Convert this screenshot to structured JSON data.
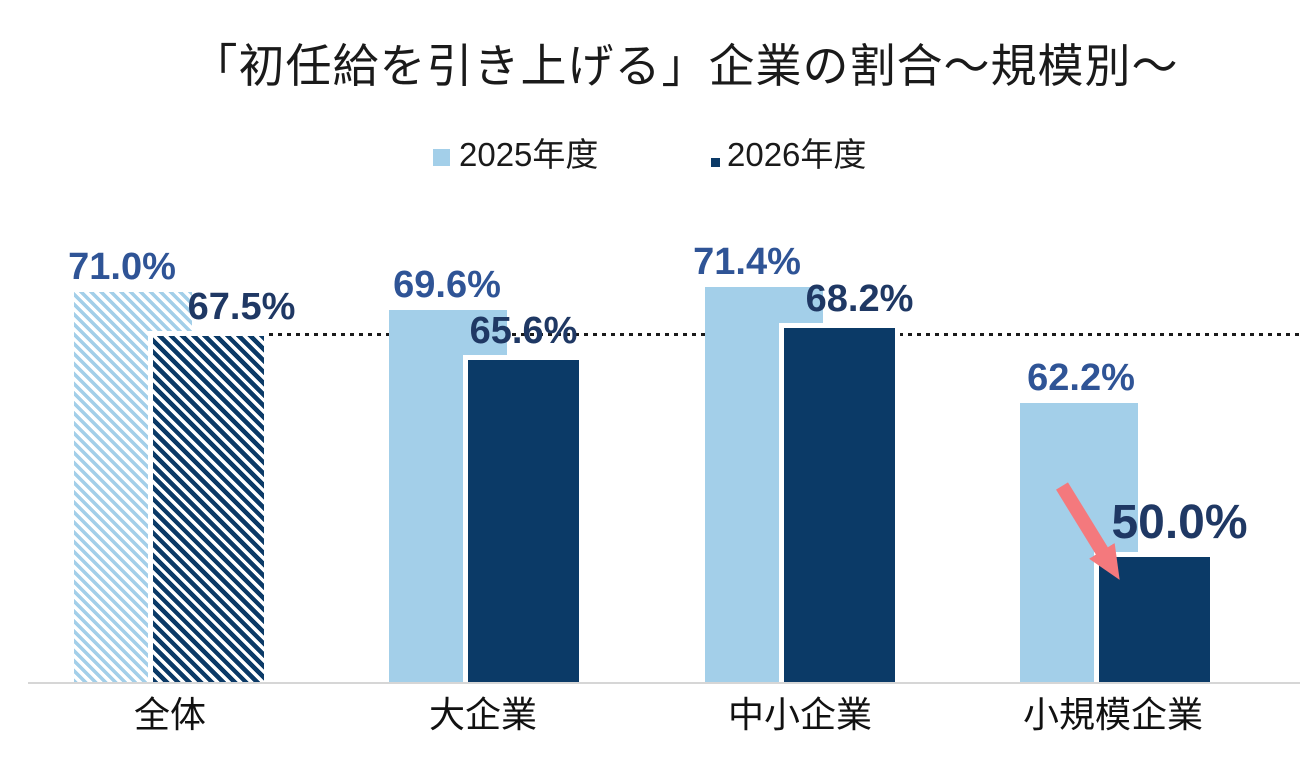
{
  "title": "「初任給を引き上げる」企業の割合～規模別～",
  "legend": [
    {
      "label": "2025年度",
      "color": "#A3CFE9"
    },
    {
      "label": "2026年度",
      "color": "#0B3A67"
    }
  ],
  "chart_data": {
    "type": "bar",
    "title": "「初任給を引き上げる」企業の割合～規模別～",
    "categories": [
      "全体",
      "大企業",
      "中小企業",
      "小規模企業"
    ],
    "series": [
      {
        "name": "2025年度",
        "values": [
          71.0,
          69.6,
          71.4,
          62.2
        ],
        "labels": [
          "71.0%",
          "69.6%",
          "71.4%",
          "62.2%"
        ],
        "color": "#A3CFE9",
        "label_color": "#2F5496",
        "hatched_categories": [
          "全体"
        ]
      },
      {
        "name": "2026年度",
        "values": [
          67.5,
          65.6,
          68.2,
          50.0
        ],
        "labels": [
          "67.5%",
          "65.6%",
          "68.2%",
          "50.0%"
        ],
        "color": "#0B3A67",
        "label_color": "#1F3864",
        "hatched_categories": [
          "全体"
        ]
      }
    ],
    "ylim": [
      40,
      75
    ],
    "grid": false,
    "legend_position": "top",
    "reference_line": {
      "value": 67.5,
      "style": "dotted",
      "color": "#1a1a1a"
    },
    "emphasized_label": "50.0%",
    "annotation_arrow": {
      "target": "小規模企業 2026年度 50.0%",
      "color": "#F4797D"
    }
  }
}
